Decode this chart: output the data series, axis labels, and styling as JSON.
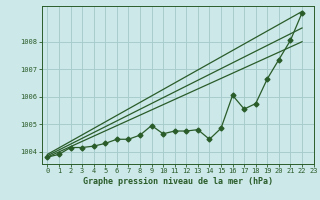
{
  "bg_color": "#cce8e8",
  "grid_color": "#a8cccc",
  "line_color": "#2a5c2a",
  "xlabel": "Graphe pression niveau de la mer (hPa)",
  "ylim": [
    1003.55,
    1009.3
  ],
  "xlim": [
    -0.5,
    23
  ],
  "yticks": [
    1004,
    1005,
    1006,
    1007,
    1008
  ],
  "xtick_labels": [
    "0",
    "1",
    "2",
    "3",
    "4",
    "5",
    "6",
    "7",
    "8",
    "9",
    "10",
    "11",
    "12",
    "13",
    "14",
    "15",
    "16",
    "17",
    "18",
    "19",
    "20",
    "21",
    "22",
    "23"
  ],
  "wavy_x": [
    0,
    1,
    2,
    3,
    4,
    5,
    6,
    7,
    8,
    9,
    10,
    11,
    12,
    13,
    14,
    15,
    16,
    17,
    18,
    19,
    20,
    21,
    22
  ],
  "wavy_y": [
    1003.8,
    1003.9,
    1004.15,
    1004.15,
    1004.2,
    1004.3,
    1004.45,
    1004.45,
    1004.6,
    1004.95,
    1004.65,
    1004.75,
    1004.75,
    1004.8,
    1004.45,
    1004.85,
    1006.05,
    1005.55,
    1005.75,
    1006.65,
    1007.35,
    1008.05,
    1009.05
  ],
  "line1_x": [
    0,
    22
  ],
  "line1_y": [
    1003.8,
    1008.0
  ],
  "line2_x": [
    0,
    22
  ],
  "line2_y": [
    1003.85,
    1008.5
  ],
  "line3_x": [
    0,
    22
  ],
  "line3_y": [
    1003.9,
    1009.1
  ],
  "tick_fontsize": 5,
  "xlabel_fontsize": 6,
  "marker_size": 2.5
}
